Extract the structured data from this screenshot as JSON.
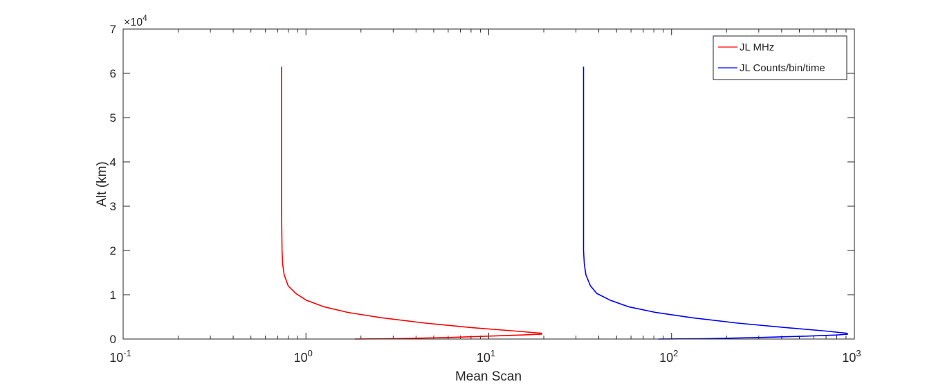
{
  "chart_data": {
    "type": "line",
    "title": "",
    "xlabel": "Mean Scan",
    "ylabel": "Alt (km)",
    "xscale": "log",
    "xlim": [
      0.1,
      1000
    ],
    "ylim": [
      0,
      70000
    ],
    "x_ticks": [
      {
        "base": "10",
        "exp": "-1"
      },
      {
        "base": "10",
        "exp": "0"
      },
      {
        "base": "10",
        "exp": "1"
      },
      {
        "base": "10",
        "exp": "2"
      },
      {
        "base": "10",
        "exp": "3"
      }
    ],
    "y_ticks": [
      "0",
      "1",
      "2",
      "3",
      "4",
      "5",
      "6",
      "7"
    ],
    "y_multiplier": {
      "base": "×10",
      "exp": "4"
    },
    "grid": false,
    "legend_position": "top-right",
    "series": [
      {
        "name": "JL MHz",
        "color": "#ff0000",
        "x": [
          1.85,
          3,
          6,
          10,
          15,
          19.5,
          19.5,
          14,
          8,
          4.5,
          2.6,
          1.7,
          1.25,
          1.0,
          0.88,
          0.8,
          0.76,
          0.745,
          0.74,
          0.735,
          0.735,
          0.735
        ],
        "y": [
          0,
          80,
          350,
          650,
          900,
          1100,
          1300,
          1800,
          2600,
          3600,
          4800,
          6000,
          7300,
          8800,
          10300,
          12000,
          14500,
          17000,
          20000,
          30000,
          50000,
          61500
        ]
      },
      {
        "name": "JL Counts/bin/time",
        "color": "#0000ff",
        "x": [
          85,
          150,
          300,
          550,
          800,
          920,
          910,
          700,
          420,
          230,
          130,
          82,
          58,
          46,
          39,
          36,
          34,
          33.3,
          33,
          33,
          33,
          33
        ],
        "y": [
          0,
          80,
          350,
          650,
          900,
          1100,
          1300,
          1800,
          2600,
          3600,
          4800,
          6000,
          7300,
          8800,
          10300,
          12000,
          14500,
          17000,
          20000,
          30000,
          50000,
          61500
        ]
      }
    ]
  }
}
